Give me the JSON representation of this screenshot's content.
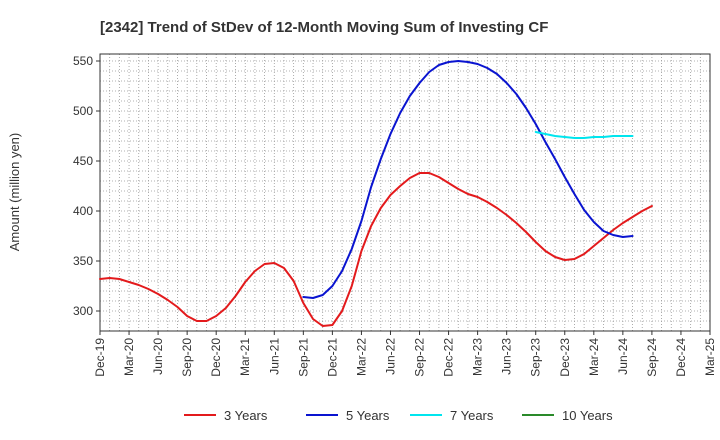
{
  "chart_data": {
    "type": "line",
    "title": "[2342]  Trend of StDev of 12-Month Moving Sum of Investing CF",
    "ylabel": "Amount (million yen)",
    "xlabel": "",
    "ylim": [
      280,
      557
    ],
    "yticks": [
      300,
      350,
      400,
      450,
      500,
      550
    ],
    "x_tick_labels": [
      "Dec-19",
      "Mar-20",
      "Jun-20",
      "Sep-20",
      "Dec-20",
      "Mar-21",
      "Jun-21",
      "Sep-21",
      "Dec-21",
      "Mar-22",
      "Jun-22",
      "Sep-22",
      "Dec-22",
      "Mar-23",
      "Jun-23",
      "Sep-23",
      "Dec-23",
      "Mar-24",
      "Jun-24",
      "Sep-24",
      "Dec-24",
      "Mar-25"
    ],
    "x_start": "Dec-19",
    "grid": true,
    "legend_position": "bottom",
    "series": [
      {
        "name": "3 Years",
        "color": "#e31a1c",
        "start": "Dec-19",
        "values": [
          332,
          333,
          332,
          329,
          326,
          322,
          317,
          311,
          304,
          295,
          290,
          290,
          295,
          303,
          315,
          329,
          340,
          347,
          348,
          343,
          330,
          308,
          292,
          285,
          286,
          300,
          325,
          360,
          385,
          403,
          416,
          425,
          433,
          438,
          438,
          434,
          428,
          422,
          417,
          414,
          409,
          403,
          396,
          388,
          379,
          369,
          360,
          354,
          351,
          352,
          357,
          365,
          373,
          381,
          388,
          394,
          400,
          405
        ]
      },
      {
        "name": "5 Years",
        "color": "#0a14d0",
        "start": "Sep-21",
        "values": [
          314,
          313,
          316,
          325,
          340,
          362,
          390,
          424,
          452,
          477,
          498,
          515,
          528,
          539,
          546,
          549,
          550,
          549,
          547,
          543,
          537,
          528,
          517,
          503,
          487,
          469,
          452,
          434,
          417,
          401,
          389,
          380,
          376,
          374,
          375
        ]
      },
      {
        "name": "7 Years",
        "color": "#00e5ee",
        "start": "Sep-23",
        "values": [
          479,
          477,
          475,
          474,
          473,
          473,
          474,
          474,
          475,
          475,
          475
        ]
      },
      {
        "name": "10 Years",
        "color": "#2a8a2a",
        "start": "Sep-23",
        "values": []
      }
    ]
  }
}
